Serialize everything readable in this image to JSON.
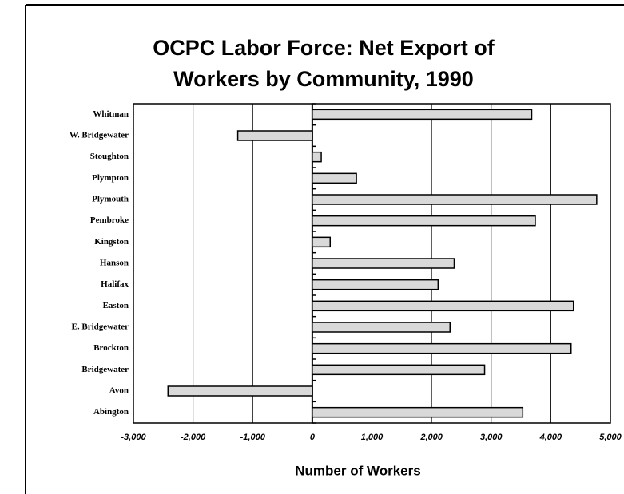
{
  "chart_data": {
    "type": "barh",
    "title": [
      "OCPC Labor Force: Net Export of",
      "Workers by Community, 1990"
    ],
    "x_label": "Number of Workers",
    "categories": [
      "Whitman",
      "W. Bridgewater",
      "Stoughton",
      "Plympton",
      "Plymouth",
      "Pembroke",
      "Kingston",
      "Hanson",
      "Halifax",
      "Easton",
      "E. Bridgewater",
      "Brockton",
      "Bridgewater",
      "Avon",
      "Abington"
    ],
    "values": [
      3680,
      -1250,
      150,
      740,
      4770,
      3740,
      300,
      2380,
      2110,
      4380,
      2310,
      4340,
      2890,
      -2420,
      3530
    ],
    "color": "#d9d9d9",
    "xlim": [
      -3000,
      5000
    ],
    "xticks": [
      {
        "value": -3000,
        "label": "-3,000"
      },
      {
        "value": -2000,
        "label": "-2,000"
      },
      {
        "value": -1000,
        "label": "-1,000"
      },
      0,
      {
        "value": 1000,
        "label": "1,000"
      },
      {
        "value": 2000,
        "label": "2,000"
      },
      {
        "value": 3000,
        "label": "3,000"
      },
      {
        "value": 4000,
        "label": "4,000"
      },
      {
        "value": 5000,
        "label": "5,000"
      }
    ],
    "grid": true
  }
}
